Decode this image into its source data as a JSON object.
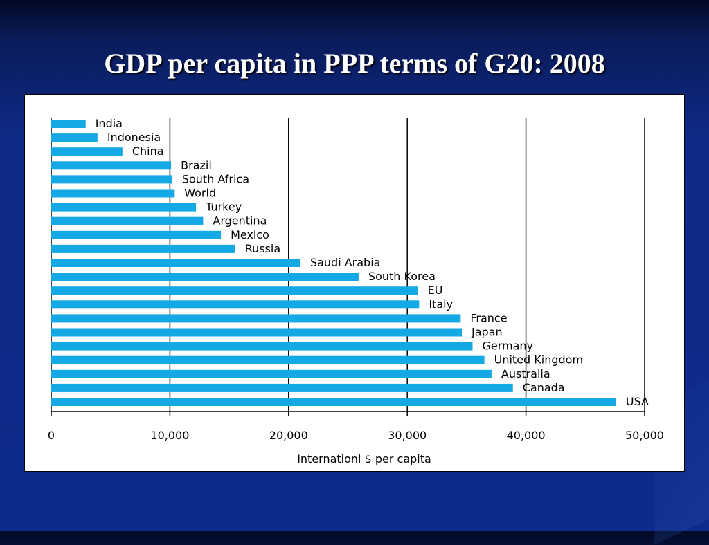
{
  "slide": {
    "title": "GDP per capita in PPP terms of G20: 2008"
  },
  "colors": {
    "bar": "#14a8e4",
    "background": "#0d2b8c"
  },
  "chart_data": {
    "type": "bar",
    "orientation": "horizontal",
    "title": "",
    "xlabel": "Internationl $ per capita",
    "ylabel": "",
    "xlim": [
      0,
      50000
    ],
    "xticks": [
      0,
      10000,
      20000,
      30000,
      40000,
      50000
    ],
    "xtick_labels": [
      "0",
      "10,000",
      "20,000",
      "30,000",
      "40,000",
      "50,000"
    ],
    "grid": "vertical",
    "categories": [
      "India",
      "Indonesia",
      "China",
      "Brazil",
      "South Africa",
      "World",
      "Turkey",
      "Argentina",
      "Mexico",
      "Russia",
      "Saudi Arabia",
      "South Korea",
      "EU",
      "Italy",
      "France",
      "Japan",
      "Germany",
      "United Kingdom",
      "Australia",
      "Canada",
      "USA"
    ],
    "values": [
      2900,
      3900,
      6000,
      10100,
      10200,
      10400,
      12200,
      12800,
      14300,
      15500,
      21000,
      25900,
      30900,
      31000,
      34500,
      34600,
      35500,
      36500,
      37100,
      38900,
      47600
    ]
  }
}
